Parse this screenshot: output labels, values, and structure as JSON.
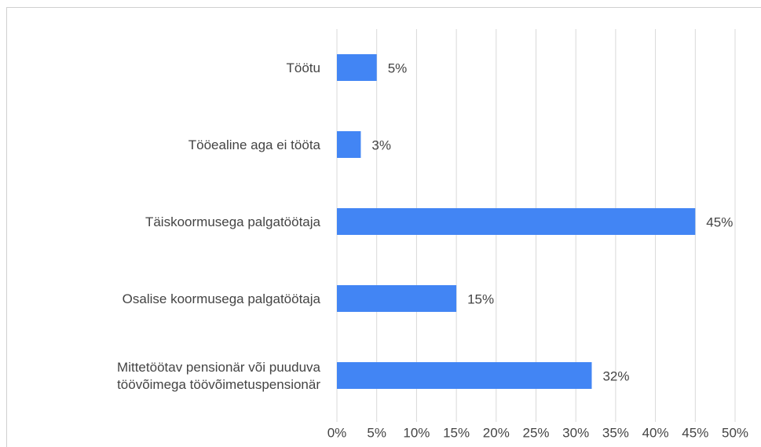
{
  "chart_data": {
    "type": "bar",
    "orientation": "horizontal",
    "categories": [
      "Töötu",
      "Tööealine aga ei tööta",
      "Täiskoormusega palgatöötaja",
      "Osalise koormusega palgatöötaja",
      "Mittetöötav pensionär või puuduva\ntöövõimega töövõimetuspensionär"
    ],
    "values": [
      5,
      3,
      45,
      15,
      32
    ],
    "value_labels": [
      "5%",
      "3%",
      "45%",
      "15%",
      "32%"
    ],
    "color": "#4285f4",
    "xlim": [
      0,
      50
    ],
    "xticks": [
      {
        "value": 0,
        "label": "0%"
      },
      {
        "value": 5,
        "label": "5%"
      },
      {
        "value": 10,
        "label": "10%"
      },
      {
        "value": 15,
        "label": "15%"
      },
      {
        "value": 20,
        "label": "20%"
      },
      {
        "value": 25,
        "label": "25%"
      },
      {
        "value": 30,
        "label": "30%"
      },
      {
        "value": 35,
        "label": "35%"
      },
      {
        "value": 40,
        "label": "40%"
      },
      {
        "value": 45,
        "label": "45%"
      },
      {
        "value": 50,
        "label": "50%"
      }
    ],
    "grid": true
  }
}
